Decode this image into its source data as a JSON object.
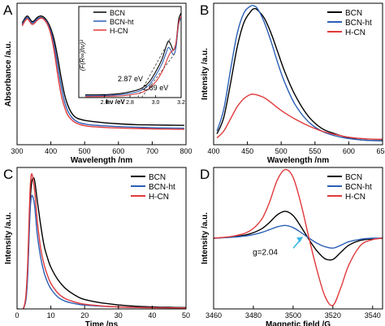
{
  "chart_data": [
    {
      "type": "line",
      "panel_label": "A",
      "xlabel": "Wavelength /nm",
      "ylabel": "Absorbance /a.u.",
      "xlim": [
        300,
        800
      ],
      "xticks": [
        300,
        400,
        500,
        600,
        700,
        800
      ],
      "ylim": [
        0,
        1
      ],
      "yticks_labeled": false,
      "grid": false,
      "legend_position": "inset, top-left of inset",
      "series": [
        {
          "name": "BCN",
          "color": "#000000",
          "x": [
            315,
            330,
            345,
            360,
            370,
            380,
            390,
            400,
            410,
            420,
            430,
            440,
            450,
            460,
            470,
            480,
            490,
            500,
            520,
            560,
            600,
            650,
            700,
            750,
            795
          ],
          "y": [
            0.86,
            0.91,
            0.87,
            0.9,
            0.91,
            0.9,
            0.87,
            0.82,
            0.74,
            0.62,
            0.48,
            0.36,
            0.28,
            0.23,
            0.2,
            0.185,
            0.178,
            0.172,
            0.165,
            0.155,
            0.148,
            0.142,
            0.14,
            0.138,
            0.137
          ]
        },
        {
          "name": "BCN-ht",
          "color": "#2b5fb5",
          "x": [
            315,
            330,
            345,
            360,
            370,
            380,
            390,
            400,
            410,
            420,
            430,
            440,
            450,
            460,
            470,
            480,
            490,
            500,
            520,
            560,
            600,
            650,
            700,
            750,
            795
          ],
          "y": [
            0.85,
            0.9,
            0.86,
            0.89,
            0.9,
            0.89,
            0.86,
            0.8,
            0.7,
            0.56,
            0.42,
            0.31,
            0.24,
            0.2,
            0.175,
            0.16,
            0.152,
            0.147,
            0.14,
            0.133,
            0.128,
            0.124,
            0.12,
            0.118,
            0.117
          ]
        },
        {
          "name": "H-CN",
          "color": "#e0393b",
          "x": [
            315,
            330,
            345,
            360,
            370,
            380,
            390,
            400,
            410,
            420,
            430,
            440,
            450,
            460,
            470,
            480,
            490,
            500,
            520,
            560,
            600,
            650,
            700,
            750,
            795
          ],
          "y": [
            0.84,
            0.89,
            0.85,
            0.88,
            0.895,
            0.885,
            0.85,
            0.78,
            0.66,
            0.5,
            0.36,
            0.27,
            0.21,
            0.18,
            0.16,
            0.148,
            0.14,
            0.135,
            0.128,
            0.122,
            0.118,
            0.115,
            0.112,
            0.11,
            0.109
          ]
        }
      ],
      "inset": {
        "xlabel": "hν /eV",
        "ylabel": "(F(R∞)hν)²",
        "xlim": [
          2.4,
          3.2
        ],
        "xticks": [
          2.4,
          2.6,
          2.8,
          3.0,
          3.2
        ],
        "xtick_labels": [
          "",
          "2.6",
          "2.8",
          "3.0",
          "3.2"
        ],
        "ylim": [
          0,
          1
        ],
        "annotations": [
          {
            "text": "2.87 eV",
            "x": 2.87
          },
          {
            "text": "2.89 eV",
            "x": 2.89
          }
        ],
        "series": [
          {
            "name": "BCN",
            "color": "#000000",
            "x": [
              2.45,
              2.55,
              2.65,
              2.75,
              2.85,
              2.9,
              2.95,
              3.0,
              3.05,
              3.08,
              3.1,
              3.12,
              3.14,
              3.16,
              3.18,
              3.2
            ],
            "y": [
              0.03,
              0.03,
              0.035,
              0.05,
              0.08,
              0.11,
              0.17,
              0.28,
              0.42,
              0.55,
              0.62,
              0.58,
              0.52,
              0.6,
              0.85,
              0.93
            ]
          },
          {
            "name": "BCN-ht",
            "color": "#2b5fb5",
            "x": [
              2.45,
              2.55,
              2.65,
              2.75,
              2.85,
              2.9,
              2.95,
              3.0,
              3.05,
              3.08,
              3.1,
              3.12,
              3.14,
              3.16,
              3.18,
              3.2
            ],
            "y": [
              0.02,
              0.02,
              0.025,
              0.035,
              0.06,
              0.09,
              0.14,
              0.24,
              0.37,
              0.48,
              0.55,
              0.52,
              0.47,
              0.55,
              0.8,
              0.88
            ]
          },
          {
            "name": "H-CN",
            "color": "#e0393b",
            "x": [
              2.45,
              2.55,
              2.65,
              2.75,
              2.85,
              2.9,
              2.95,
              3.0,
              3.05,
              3.08,
              3.1,
              3.12,
              3.14,
              3.16,
              3.18,
              3.2
            ],
            "y": [
              0.01,
              0.012,
              0.015,
              0.02,
              0.04,
              0.06,
              0.1,
              0.17,
              0.28,
              0.38,
              0.45,
              0.5,
              0.52,
              0.6,
              0.82,
              0.9
            ]
          }
        ],
        "fit_lines": [
          {
            "x": [
              2.86,
              3.12
            ],
            "y": [
              0.0,
              0.66
            ]
          },
          {
            "x": [
              2.89,
              3.16
            ],
            "y": [
              0.0,
              0.5
            ]
          }
        ]
      }
    },
    {
      "type": "line",
      "panel_label": "B",
      "xlabel": "Wavelength /nm",
      "ylabel": "Intensity /a.u.",
      "xlim": [
        400,
        650
      ],
      "xticks": [
        400,
        450,
        500,
        550,
        600,
        650
      ],
      "ylim": [
        0,
        1.04
      ],
      "yticks_labeled": false,
      "grid": false,
      "legend_position": "top-right",
      "series": [
        {
          "name": "BCN",
          "color": "#000000",
          "x": [
            405,
            415,
            425,
            435,
            445,
            455,
            460,
            465,
            475,
            485,
            495,
            505,
            520,
            540,
            560,
            580,
            600,
            620,
            640,
            650
          ],
          "y": [
            0.08,
            0.2,
            0.45,
            0.72,
            0.9,
            0.98,
            1.0,
            0.99,
            0.93,
            0.82,
            0.68,
            0.54,
            0.37,
            0.21,
            0.12,
            0.08,
            0.05,
            0.035,
            0.03,
            0.03
          ]
        },
        {
          "name": "BCN-ht",
          "color": "#2b5fb5",
          "x": [
            405,
            415,
            425,
            435,
            445,
            455,
            460,
            465,
            475,
            485,
            495,
            505,
            520,
            540,
            560,
            580,
            600,
            620,
            640,
            650
          ],
          "y": [
            0.1,
            0.26,
            0.55,
            0.82,
            0.97,
            1.02,
            1.02,
            1.0,
            0.9,
            0.76,
            0.6,
            0.46,
            0.3,
            0.17,
            0.1,
            0.065,
            0.045,
            0.035,
            0.03,
            0.03
          ]
        },
        {
          "name": "H-CN",
          "color": "#e0393b",
          "x": [
            405,
            415,
            425,
            435,
            445,
            455,
            460,
            465,
            475,
            485,
            495,
            505,
            520,
            540,
            560,
            580,
            600,
            620,
            640,
            650
          ],
          "y": [
            0.05,
            0.1,
            0.19,
            0.28,
            0.34,
            0.37,
            0.37,
            0.365,
            0.345,
            0.31,
            0.27,
            0.235,
            0.19,
            0.14,
            0.1,
            0.075,
            0.055,
            0.045,
            0.04,
            0.04
          ]
        }
      ]
    },
    {
      "type": "line",
      "panel_label": "C",
      "xlabel": "Time /ns",
      "ylabel": "Intensity /a.u.",
      "xlim": [
        0,
        50
      ],
      "xticks": [
        0,
        10,
        20,
        30,
        40,
        50
      ],
      "ylim": [
        0,
        1.05
      ],
      "yticks_labeled": false,
      "grid": false,
      "legend_position": "top-right",
      "series": [
        {
          "name": "BCN",
          "color": "#000000",
          "x": [
            0,
            2,
            3,
            4,
            5,
            6,
            7,
            8,
            9,
            10,
            12,
            14,
            16,
            18,
            20,
            25,
            30,
            35,
            40,
            45,
            50
          ],
          "y": [
            0.0,
            0.01,
            0.2,
            0.85,
            0.97,
            0.8,
            0.62,
            0.47,
            0.38,
            0.31,
            0.22,
            0.16,
            0.12,
            0.09,
            0.07,
            0.045,
            0.03,
            0.02,
            0.015,
            0.012,
            0.01
          ]
        },
        {
          "name": "BCN-ht",
          "color": "#2b5fb5",
          "x": [
            0,
            2,
            3,
            4,
            5,
            6,
            7,
            8,
            9,
            10,
            12,
            14,
            16,
            18,
            20,
            25,
            30,
            35,
            40,
            45,
            50
          ],
          "y": [
            0.0,
            0.01,
            0.18,
            0.78,
            0.8,
            0.55,
            0.38,
            0.27,
            0.2,
            0.15,
            0.09,
            0.06,
            0.045,
            0.035,
            0.028,
            0.02,
            0.015,
            0.012,
            0.01,
            0.008,
            0.007
          ]
        },
        {
          "name": "H-CN",
          "color": "#e0393b",
          "x": [
            0,
            2,
            3,
            4,
            5,
            6,
            7,
            8,
            9,
            10,
            12,
            14,
            16,
            18,
            20,
            25,
            30,
            35,
            40,
            45,
            50
          ],
          "y": [
            0.0,
            0.01,
            0.25,
            0.95,
            0.92,
            0.65,
            0.45,
            0.33,
            0.25,
            0.19,
            0.12,
            0.08,
            0.06,
            0.045,
            0.035,
            0.022,
            0.015,
            0.011,
            0.009,
            0.008,
            0.007
          ]
        }
      ]
    },
    {
      "type": "line",
      "panel_label": "D",
      "xlabel": "Magnetic field /G",
      "ylabel": "Intensity /a.u.",
      "xlim": [
        3460,
        3545
      ],
      "xticks": [
        3460,
        3480,
        3500,
        3520,
        3540
      ],
      "ylim": [
        -1,
        1
      ],
      "yticks_labeled": false,
      "grid": false,
      "legend_position": "top-right",
      "annotations": [
        {
          "text": "g=2.04",
          "x": 3505,
          "y": 0.02
        }
      ],
      "series": [
        {
          "name": "BCN",
          "color": "#000000",
          "x": [
            3460,
            3470,
            3478,
            3484,
            3488,
            3492,
            3496,
            3500,
            3504,
            3508,
            3512,
            3516,
            3520,
            3524,
            3528,
            3534,
            3540,
            3545
          ],
          "y": [
            0.0,
            0.02,
            0.06,
            0.13,
            0.22,
            0.33,
            0.38,
            0.32,
            0.16,
            -0.02,
            -0.18,
            -0.29,
            -0.3,
            -0.2,
            -0.1,
            -0.03,
            -0.01,
            0.0
          ]
        },
        {
          "name": "BCN-ht",
          "color": "#2b5fb5",
          "x": [
            3460,
            3470,
            3478,
            3484,
            3488,
            3492,
            3496,
            3500,
            3504,
            3508,
            3512,
            3516,
            3520,
            3524,
            3528,
            3534,
            3540,
            3545
          ],
          "y": [
            0.0,
            0.015,
            0.04,
            0.08,
            0.12,
            0.16,
            0.18,
            0.15,
            0.08,
            0.0,
            -0.07,
            -0.12,
            -0.14,
            -0.1,
            -0.05,
            -0.015,
            0.0,
            0.0
          ]
        },
        {
          "name": "H-CN",
          "color": "#e0393b",
          "x": [
            3460,
            3470,
            3478,
            3484,
            3488,
            3492,
            3496,
            3500,
            3504,
            3508,
            3512,
            3516,
            3520,
            3524,
            3528,
            3534,
            3540,
            3545
          ],
          "y": [
            0.0,
            0.03,
            0.1,
            0.26,
            0.5,
            0.82,
            0.97,
            0.86,
            0.48,
            0.0,
            -0.45,
            -0.82,
            -0.95,
            -0.7,
            -0.38,
            -0.1,
            -0.02,
            0.0
          ]
        }
      ]
    }
  ]
}
